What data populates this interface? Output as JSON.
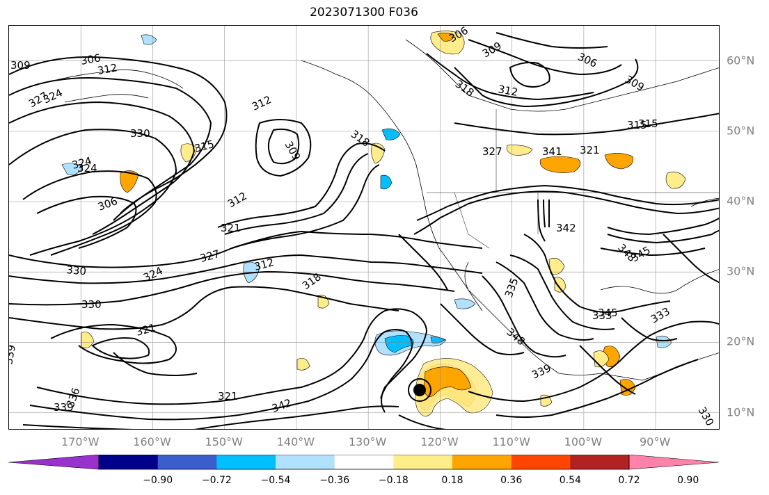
{
  "title": "2023071300 F036",
  "lat_labels": [
    {
      "text": "60°N",
      "lat": 60
    },
    {
      "text": "50°N",
      "lat": 50
    },
    {
      "text": "40°N",
      "lat": 40
    },
    {
      "text": "30°N",
      "lat": 30
    },
    {
      "text": "20°N",
      "lat": 20
    },
    {
      "text": "10°N",
      "lat": 10
    }
  ],
  "lon_labels": [
    {
      "text": "170°W",
      "lon": -170
    },
    {
      "text": "160°W",
      "lon": -160
    },
    {
      "text": "150°W",
      "lon": -150
    },
    {
      "text": "140°W",
      "lon": -140
    },
    {
      "text": "130°W",
      "lon": -130
    },
    {
      "text": "120°W",
      "lon": -120
    },
    {
      "text": "110°W",
      "lon": -110
    },
    {
      "text": "100°W",
      "lon": -100
    },
    {
      "text": "90°W",
      "lon": -90
    }
  ],
  "colorbar": {
    "colors": [
      "#9932cc",
      "#00008b",
      "#3a5fcd",
      "#00bfff",
      "#b0e2ff",
      "#ffffff",
      "#ffec8b",
      "#ffa500",
      "#ff4500",
      "#b22222",
      "#ff82ab"
    ],
    "ticks": [
      "−0.90",
      "−0.72",
      "−0.54",
      "−0.36",
      "−0.18",
      "0.18",
      "0.36",
      "0.54",
      "0.72",
      "0.90"
    ]
  },
  "contour_labels": [
    "306",
    "312",
    "309",
    "324",
    "327",
    "330",
    "324",
    "324",
    "306",
    "315",
    "312",
    "309",
    "318",
    "312",
    "321",
    "327",
    "324",
    "312",
    "330",
    "330",
    "318",
    "321",
    "339",
    "336",
    "339",
    "321",
    "342",
    "339",
    "333",
    "348",
    "335",
    "306",
    "309",
    "318",
    "312",
    "306",
    "309",
    "315",
    "321",
    "327",
    "341",
    "342",
    "330",
    "333",
    "345",
    "348",
    "345",
    "315"
  ]
}
